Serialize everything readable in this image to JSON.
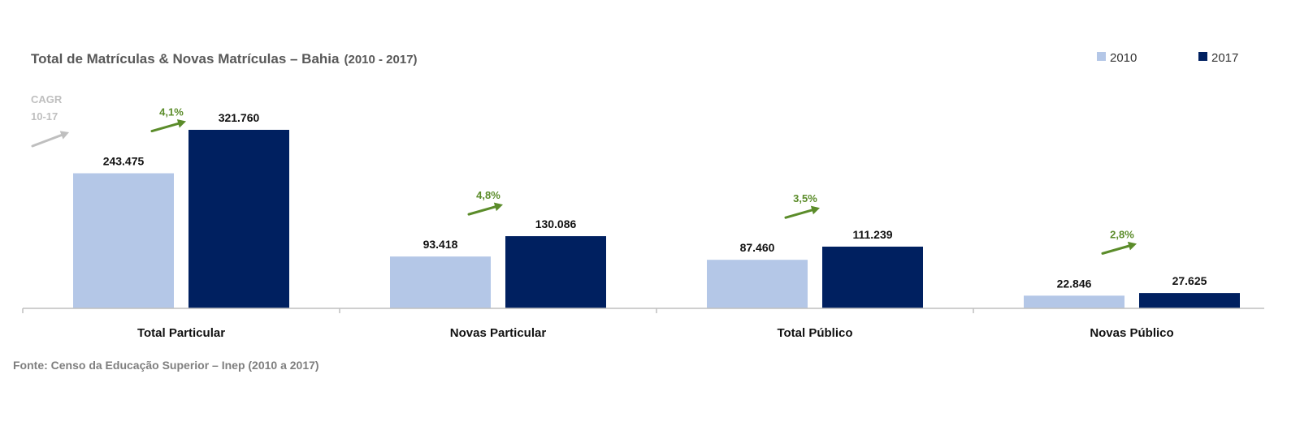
{
  "chart_data": {
    "type": "bar",
    "title": "Total de Matrículas & Novas Matrículas – Bahia",
    "subtitle": "(2010 - 2017)",
    "categories": [
      "Total Particular",
      "Novas Particular",
      "Total Público",
      "Novas Público"
    ],
    "series": [
      {
        "name": "2010",
        "values": [
          243475,
          93418,
          87460,
          22846
        ],
        "labels": [
          "243.475",
          "93.418",
          "87.460",
          "22.846"
        ],
        "color": "#b4c7e7"
      },
      {
        "name": "2017",
        "values": [
          321760,
          130086,
          111239,
          27625
        ],
        "labels": [
          "321.760",
          "130.086",
          "111.239",
          "27.625"
        ],
        "color": "#002060"
      }
    ],
    "growth": [
      "4,1%",
      "4,8%",
      "3,5%",
      "2,8%"
    ],
    "growth_color": "#5b8c2a",
    "cagr_label": [
      "CAGR",
      "10-17"
    ],
    "cagr_color": "#bfbfbf",
    "legend_position": "top-right",
    "ylim": [
      0,
      321760
    ],
    "source": "Fonte: Censo da Educação Superior – Inep (2010 a 2017)"
  }
}
